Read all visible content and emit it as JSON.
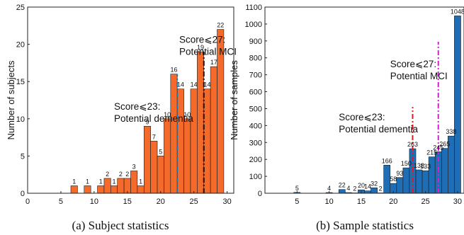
{
  "chart_data": [
    {
      "type": "bar",
      "caption": "(a) Subject statistics",
      "ylabel": "Number of subjects",
      "xlim": [
        0,
        31
      ],
      "ylim": [
        0,
        25
      ],
      "xticks": [
        0,
        5,
        10,
        15,
        20,
        25,
        30
      ],
      "yticks": [
        0,
        5,
        10,
        15,
        20,
        25
      ],
      "bar_color": "#f46a2a",
      "bars": [
        {
          "x": 7,
          "value": 1,
          "label": "1"
        },
        {
          "x": 9,
          "value": 1,
          "label": "1"
        },
        {
          "x": 11,
          "value": 1,
          "label": "1"
        },
        {
          "x": 12,
          "value": 2,
          "label": "2"
        },
        {
          "x": 13,
          "value": 1,
          "label": "1"
        },
        {
          "x": 14,
          "value": 2,
          "label": "2"
        },
        {
          "x": 15,
          "value": 2,
          "label": "2"
        },
        {
          "x": 16,
          "value": 3,
          "label": "3"
        },
        {
          "x": 17,
          "value": 1,
          "label": "1"
        },
        {
          "x": 18,
          "value": 9,
          "label": "9"
        },
        {
          "x": 19,
          "value": 7,
          "label": "7"
        },
        {
          "x": 20,
          "value": 5,
          "label": "5"
        },
        {
          "x": 21,
          "value": 10,
          "label": "10"
        },
        {
          "x": 22,
          "value": 16,
          "label": "16"
        },
        {
          "x": 23,
          "value": 14,
          "label": "14"
        },
        {
          "x": 24,
          "value": 10,
          "label": "10"
        },
        {
          "x": 25,
          "value": 14,
          "label": "14"
        },
        {
          "x": 26,
          "value": 19,
          "label": "19"
        },
        {
          "x": 27,
          "value": 14,
          "label": "14"
        },
        {
          "x": 28,
          "value": 17,
          "label": "17"
        },
        {
          "x": 29,
          "value": 22,
          "label": "22"
        }
      ],
      "thresholds": [
        {
          "x": 22.5,
          "color": "#1f77b4",
          "style": "dashdot"
        },
        {
          "x": 26.5,
          "color": "#111111",
          "style": "dashdot"
        }
      ],
      "annotations": [
        {
          "lines": [
            "Score⩽23:",
            "Potential dementia"
          ],
          "x": 13.0,
          "y": 11.2
        },
        {
          "lines": [
            "Score⩽27:",
            "Potential MCI"
          ],
          "x": 22.8,
          "y": 20.2
        }
      ]
    },
    {
      "type": "bar",
      "caption": "(b) Sample statistics",
      "ylabel": "Number of samples",
      "xlim": [
        0,
        31
      ],
      "ylim": [
        0,
        1100
      ],
      "xticks": [
        5,
        10,
        15,
        20,
        25,
        30
      ],
      "yticks": [
        0,
        100,
        200,
        300,
        400,
        500,
        600,
        700,
        800,
        900,
        1000,
        1100
      ],
      "bar_color": "#1f6db5",
      "bars": [
        {
          "x": 5,
          "value": 5,
          "label": "5"
        },
        {
          "x": 10,
          "value": 4,
          "label": "4"
        },
        {
          "x": 12,
          "value": 22,
          "label": "22"
        },
        {
          "x": 13,
          "value": 4,
          "label": "4"
        },
        {
          "x": 14,
          "value": 2,
          "label": "2"
        },
        {
          "x": 15,
          "value": 20,
          "label": "20"
        },
        {
          "x": 16,
          "value": 14,
          "label": "14"
        },
        {
          "x": 17,
          "value": 32,
          "label": "32"
        },
        {
          "x": 18,
          "value": 2,
          "label": "2"
        },
        {
          "x": 19,
          "value": 166,
          "label": "166"
        },
        {
          "x": 20,
          "value": 58,
          "label": "58"
        },
        {
          "x": 21,
          "value": 93,
          "label": "93"
        },
        {
          "x": 22,
          "value": 150,
          "label": "150"
        },
        {
          "x": 23,
          "value": 263,
          "label": "263"
        },
        {
          "x": 24,
          "value": 138,
          "label": "138"
        },
        {
          "x": 25,
          "value": 133,
          "label": "133"
        },
        {
          "x": 26,
          "value": 215,
          "label": "215"
        },
        {
          "x": 27,
          "value": 245,
          "label": "245"
        },
        {
          "x": 28,
          "value": 265,
          "label": "265"
        },
        {
          "x": 29,
          "value": 338,
          "label": "338"
        },
        {
          "x": 30,
          "value": 1048,
          "label": "1048"
        }
      ],
      "thresholds": [
        {
          "x": 23,
          "color": "#e8161e",
          "style": "dashdot",
          "top": 510
        },
        {
          "x": 27,
          "color": "#d11fd1",
          "style": "dashdot",
          "top": 895
        }
      ],
      "annotations": [
        {
          "lines": [
            "Score⩽23:",
            "Potential dementia"
          ],
          "x": 11.5,
          "y": 430
        },
        {
          "lines": [
            "Score⩽27:",
            "Potential MCI"
          ],
          "x": 19.5,
          "y": 745
        }
      ]
    }
  ]
}
